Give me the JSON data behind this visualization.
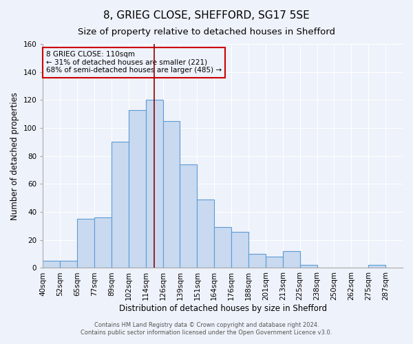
{
  "title": "8, GRIEG CLOSE, SHEFFORD, SG17 5SE",
  "subtitle": "Size of property relative to detached houses in Shefford",
  "xlabel": "Distribution of detached houses by size in Shefford",
  "ylabel": "Number of detached properties",
  "footer1": "Contains HM Land Registry data © Crown copyright and database right 2024.",
  "footer2": "Contains public sector information licensed under the Open Government Licence v3.0.",
  "bin_labels": [
    "40sqm",
    "52sqm",
    "65sqm",
    "77sqm",
    "89sqm",
    "102sqm",
    "114sqm",
    "126sqm",
    "139sqm",
    "151sqm",
    "164sqm",
    "176sqm",
    "188sqm",
    "201sqm",
    "213sqm",
    "225sqm",
    "238sqm",
    "250sqm",
    "262sqm",
    "275sqm",
    "287sqm"
  ],
  "counts": [
    5,
    5,
    35,
    36,
    90,
    113,
    120,
    105,
    74,
    49,
    29,
    26,
    10,
    8,
    12,
    2,
    0,
    0,
    0,
    2
  ],
  "bar_facecolor": "#c8d9f0",
  "bar_edgecolor": "#5b9bd5",
  "property_line_index": 6.5,
  "property_line_color": "#8b0000",
  "annotation_title": "8 GRIEG CLOSE: 110sqm",
  "annotation_line1": "← 31% of detached houses are smaller (221)",
  "annotation_line2": "68% of semi-detached houses are larger (485) →",
  "annotation_box_edgecolor": "#cc0000",
  "ylim": [
    0,
    160
  ],
  "yticks": [
    0,
    20,
    40,
    60,
    80,
    100,
    120,
    140,
    160
  ],
  "bg_color": "#eef2fa",
  "grid_color": "#ffffff",
  "title_fontsize": 11,
  "subtitle_fontsize": 9.5,
  "axis_label_fontsize": 8.5,
  "tick_fontsize": 7.5
}
